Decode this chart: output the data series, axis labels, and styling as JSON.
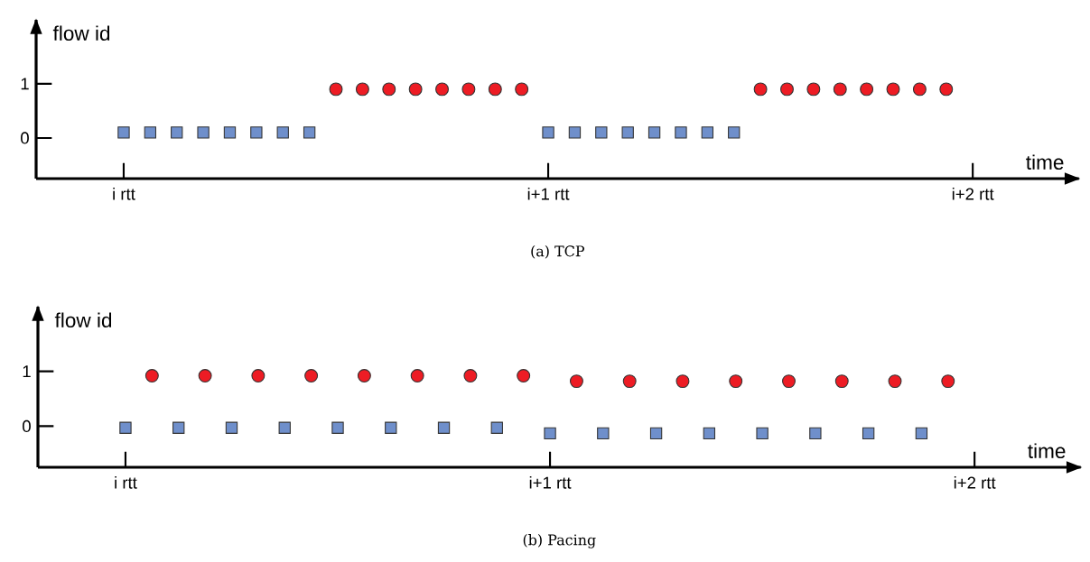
{
  "chart_data": [
    {
      "type": "scatter",
      "title": "(a) TCP",
      "xlabel": "time",
      "ylabel": "flow id",
      "ylim": [
        -0.75,
        2.18
      ],
      "yticks": [
        0,
        1
      ],
      "categories": [
        "i rtt",
        null,
        null,
        null,
        null,
        null,
        null,
        null,
        null,
        null,
        null,
        null,
        null,
        null,
        null,
        null,
        "i+1 rtt",
        null,
        null,
        null,
        null,
        null,
        null,
        null,
        null,
        null,
        null,
        null,
        null,
        null,
        null,
        null,
        "i+2 rtt"
      ],
      "series": [
        {
          "color": "#6f8fcb",
          "marker": "square",
          "values": [
            0.1,
            0.1,
            0.1,
            0.1,
            0.1,
            0.1,
            0.1,
            0.1,
            null,
            null,
            null,
            null,
            null,
            null,
            null,
            null,
            0.1,
            0.1,
            0.1,
            0.1,
            0.1,
            0.1,
            0.1,
            0.1,
            null,
            null,
            null,
            null,
            null,
            null,
            null,
            null,
            null
          ]
        },
        {
          "color": "#ed1c24",
          "marker": "circle",
          "values": [
            null,
            null,
            null,
            null,
            null,
            null,
            null,
            null,
            0.9,
            0.9,
            0.9,
            0.9,
            0.9,
            0.9,
            0.9,
            0.9,
            null,
            null,
            null,
            null,
            null,
            null,
            null,
            null,
            0.9,
            0.9,
            0.9,
            0.9,
            0.9,
            0.9,
            0.9,
            0.9,
            null
          ]
        }
      ]
    },
    {
      "type": "scatter",
      "title": "(b) Pacing",
      "xlabel": "time",
      "ylabel": "flow id",
      "ylim": [
        -0.75,
        2.18
      ],
      "yticks": [
        0,
        1
      ],
      "categories": [
        "i rtt",
        null,
        null,
        null,
        null,
        null,
        null,
        null,
        null,
        null,
        null,
        null,
        null,
        null,
        null,
        null,
        "i+1 rtt",
        null,
        null,
        null,
        null,
        null,
        null,
        null,
        null,
        null,
        null,
        null,
        null,
        null,
        null,
        null,
        "i+2 rtt"
      ],
      "series": [
        {
          "color": "#6f8fcb",
          "marker": "square",
          "values": [
            -0.03,
            null,
            -0.03,
            null,
            -0.03,
            null,
            -0.03,
            null,
            -0.03,
            null,
            -0.03,
            null,
            -0.03,
            null,
            -0.03,
            null,
            -0.13,
            null,
            -0.13,
            null,
            -0.13,
            null,
            -0.13,
            null,
            -0.13,
            null,
            -0.13,
            null,
            -0.13,
            null,
            -0.13,
            null,
            null
          ]
        },
        {
          "color": "#ed1c24",
          "marker": "circle",
          "values": [
            null,
            0.92,
            null,
            0.92,
            null,
            0.92,
            null,
            0.92,
            null,
            0.92,
            null,
            0.92,
            null,
            0.92,
            null,
            0.92,
            null,
            0.82,
            null,
            0.82,
            null,
            0.82,
            null,
            0.82,
            null,
            0.82,
            null,
            0.82,
            null,
            0.82,
            null,
            0.82,
            null
          ]
        }
      ]
    }
  ]
}
